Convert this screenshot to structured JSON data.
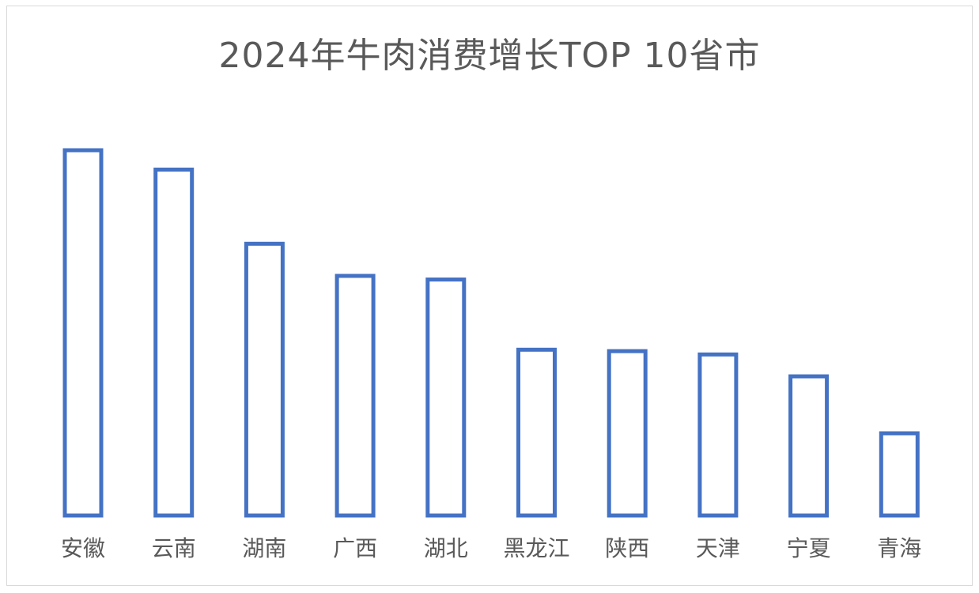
{
  "chart_data": {
    "type": "bar",
    "title": "2024年牛肉消费增长TOP 10省市",
    "xlabel": "",
    "ylabel": "",
    "categories": [
      "安徽",
      "云南",
      "湖南",
      "广西",
      "湖北",
      "黑龙江",
      "陕西",
      "天津",
      "宁夏",
      "青海"
    ],
    "values": [
      100,
      94.7,
      74.4,
      65.6,
      64.6,
      45.4,
      45.0,
      44.1,
      38.1,
      22.5
    ],
    "ylim": [
      0,
      100
    ],
    "y_axis_shown": false,
    "grid": false,
    "legend": "none",
    "bar_style": "outline",
    "colors": {
      "bar_stroke": "#4472c4",
      "bar_fill": "#ffffff",
      "title_text": "#595959",
      "tick_text": "#595959",
      "frame": "#d9d9d9"
    }
  }
}
